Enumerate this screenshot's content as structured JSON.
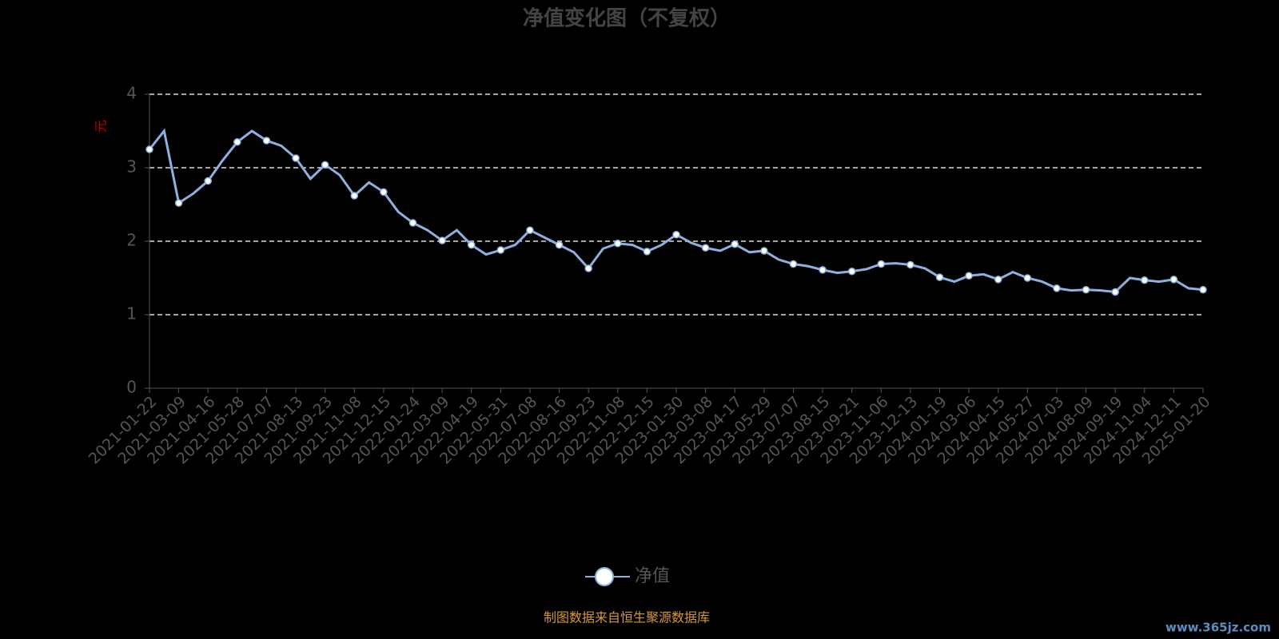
{
  "chart_data": {
    "type": "line",
    "title": "净值变化图（不复权）",
    "y_label": "元",
    "categories": [
      "2021-01-22",
      null,
      "2021-03-09",
      null,
      "2021-04-16",
      null,
      "2021-05-28",
      null,
      "2021-07-07",
      null,
      "2021-08-13",
      null,
      "2021-09-23",
      null,
      "2021-11-08",
      null,
      "2021-12-15",
      null,
      "2022-01-24",
      null,
      "2022-03-09",
      null,
      "2022-04-19",
      null,
      "2022-05-31",
      null,
      "2022-07-08",
      null,
      "2022-08-16",
      null,
      "2022-09-23",
      null,
      "2022-11-08",
      null,
      "2022-12-15",
      null,
      "2023-01-30",
      null,
      "2023-03-08",
      null,
      "2023-04-17",
      null,
      "2023-05-29",
      null,
      "2023-07-07",
      null,
      "2023-08-15",
      null,
      "2023-09-21",
      null,
      "2023-11-06",
      null,
      "2023-12-13",
      null,
      "2024-01-19",
      null,
      "2024-03-06",
      null,
      "2024-04-15",
      null,
      "2024-05-27",
      null,
      "2024-07-03",
      null,
      "2024-08-09",
      null,
      "2024-09-19",
      null,
      "2024-11-04",
      null,
      "2024-12-11",
      null,
      "2025-01-20"
    ],
    "series": [
      {
        "name": "净值",
        "color": "#8eb0e0",
        "values": [
          3.25,
          3.5,
          2.52,
          2.65,
          2.82,
          3.1,
          3.35,
          3.5,
          3.37,
          3.3,
          3.13,
          2.85,
          3.04,
          2.9,
          2.62,
          2.8,
          2.67,
          2.4,
          2.25,
          2.15,
          2.01,
          2.15,
          1.95,
          1.82,
          1.88,
          1.95,
          2.15,
          2.05,
          1.95,
          1.85,
          1.63,
          1.9,
          1.97,
          1.95,
          1.86,
          1.95,
          2.09,
          1.98,
          1.91,
          1.87,
          1.96,
          1.85,
          1.87,
          1.75,
          1.69,
          1.66,
          1.61,
          1.57,
          1.59,
          1.62,
          1.69,
          1.7,
          1.68,
          1.63,
          1.51,
          1.45,
          1.53,
          1.55,
          1.48,
          1.58,
          1.5,
          1.45,
          1.36,
          1.33,
          1.34,
          1.33,
          1.31,
          1.5,
          1.47,
          1.45,
          1.48,
          1.36,
          1.34
        ]
      }
    ],
    "ylim": [
      0,
      4
    ],
    "yticks": [
      0,
      1,
      2,
      3,
      4
    ],
    "grid": true,
    "source": "制图数据来自恒生聚源数据库",
    "watermark": "www.365jz.com"
  }
}
